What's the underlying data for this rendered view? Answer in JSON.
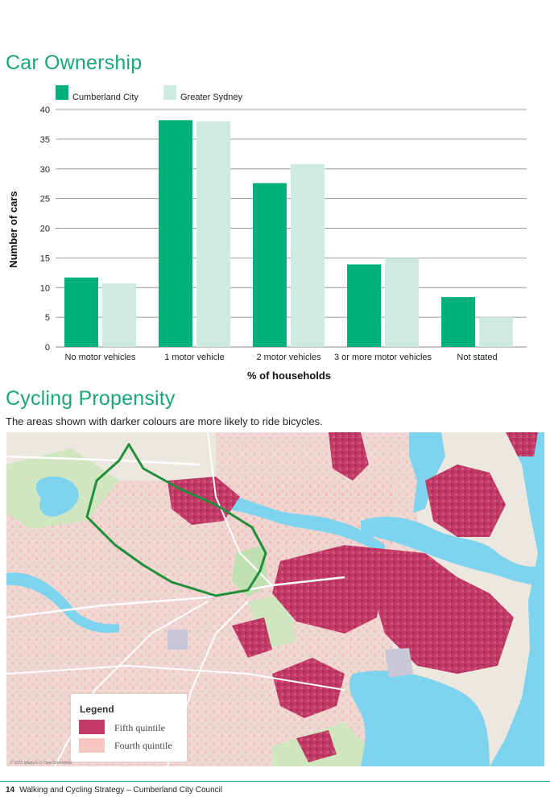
{
  "car_ownership": {
    "title": "Car Ownership"
  },
  "chart_data": {
    "type": "bar",
    "categories": [
      "No motor vehicles",
      "1 motor vehicle",
      "2 motor vehicles",
      "3 or more motor vehicles",
      "Not stated"
    ],
    "series": [
      {
        "name": "Cumberland City",
        "values": [
          11.7,
          38.2,
          27.6,
          13.9,
          8.4
        ],
        "color": "#00b07b"
      },
      {
        "name": "Greater Sydney",
        "values": [
          10.7,
          38.0,
          30.8,
          15.0,
          5.0
        ],
        "color": "#cfeade"
      }
    ],
    "xlabel": "% of households",
    "ylabel": "Number of cars",
    "ylim": [
      0,
      40
    ],
    "yticks": [
      "0",
      "5",
      "10",
      "15",
      "20",
      "25",
      "30",
      "35",
      "40"
    ],
    "grid": true,
    "legend_position": "top-left"
  },
  "cycling": {
    "title": "Cycling Propensity",
    "subtitle": "The areas shown with darker colours are more likely to ride bicycles.",
    "legend_title": "Legend",
    "legend_items": [
      {
        "label": "Fifth quintile",
        "color": "#c23a66"
      },
      {
        "label": "Fourth quintile",
        "color": "#f6c6c2"
      }
    ],
    "attribution": "© 2023 Mapbox © OpenStreetMap"
  },
  "colors": {
    "accent": "#1aa57a",
    "water": "#7ed3ee",
    "land": "#e9e6df",
    "park": "#cbe5bd",
    "boundary": "#1f8f3a"
  },
  "footer": {
    "page_number": "14",
    "text": "Walking and Cycling Strategy – Cumberland City Council"
  }
}
